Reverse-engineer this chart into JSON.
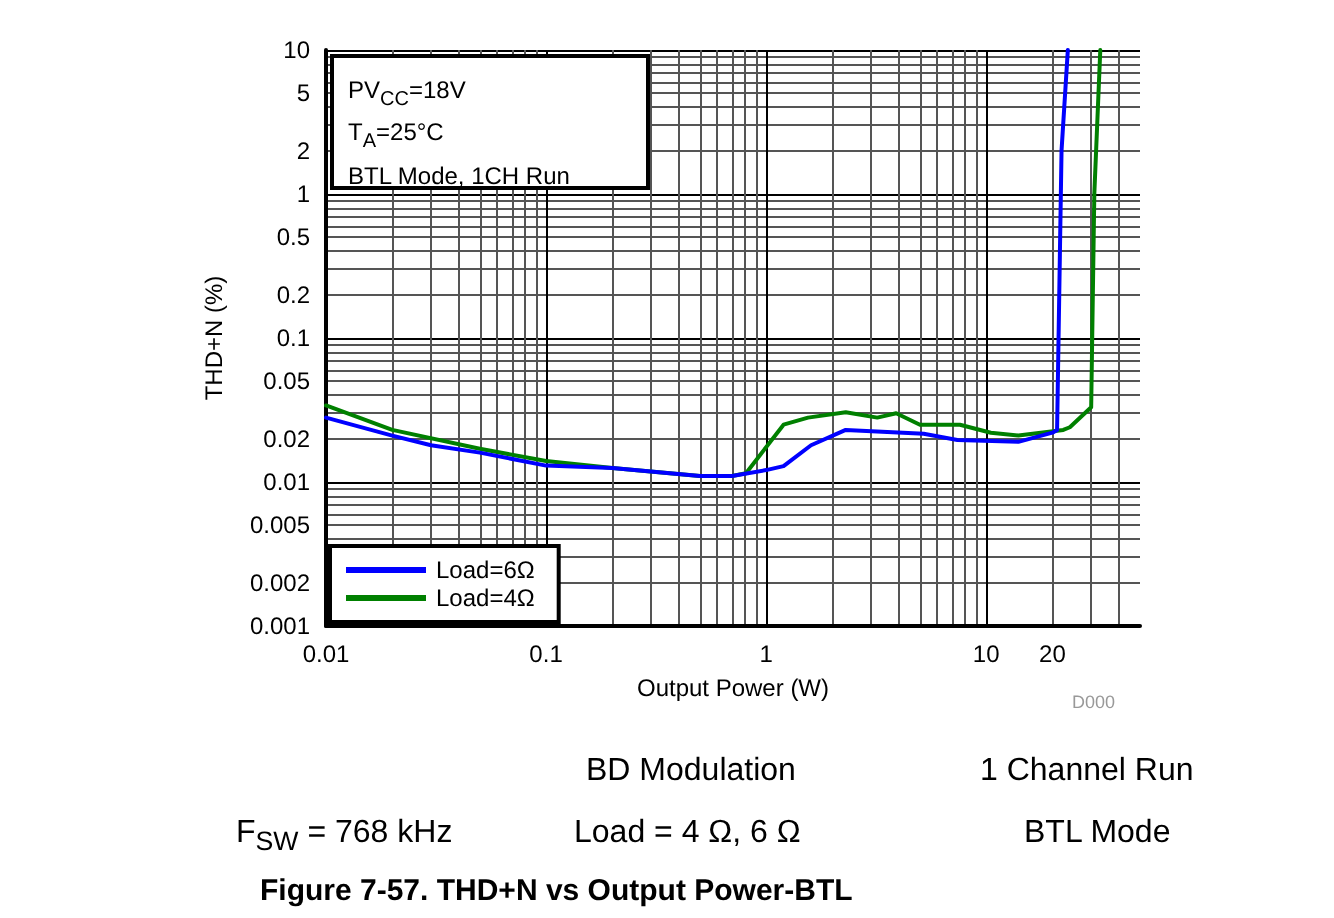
{
  "chart_data": {
    "type": "line",
    "title": "Figure 7-57. THD+N vs Output Power-BTL",
    "xlabel": "Output Power (W)",
    "ylabel": "THD+N (%)",
    "log": "xy",
    "grid": true,
    "legend": "bottom left",
    "marker": "none",
    "line_style": "solid",
    "xlim": [
      0.01,
      50
    ],
    "xticks": [
      0.01,
      0.1,
      1,
      10,
      20
    ],
    "ylim": [
      0.001,
      10
    ],
    "yticks": [
      0.001,
      0.002,
      0.005,
      0.01,
      0.02,
      0.05,
      0.1,
      0.2,
      0.5,
      1,
      2,
      5,
      10
    ],
    "annotations": [
      "PV$_{CC}$=18V",
      "T$_{A}$=25°C",
      "BTL Mode, 1CH Run",
      "D000",
      "BD Modulation",
      "1 Channel Run",
      "F$_{SW}$ = 768 kHz",
      "Load = 4 Ω, 6 Ω",
      "BTL Mode"
    ],
    "series": [
      {
        "name": "Load=6Ω",
        "color": "#0000ff",
        "x": [
          0.01,
          0.02,
          0.03,
          0.05,
          0.1,
          0.2,
          0.5,
          0.7,
          1,
          1.2,
          1.6,
          2.3,
          5.2,
          7.4,
          14,
          20,
          21,
          22,
          23.5
        ],
        "values": [
          0.028,
          0.021,
          0.018,
          0.016,
          0.013,
          0.0125,
          0.011,
          0.011,
          0.0121,
          0.0129,
          0.018,
          0.023,
          0.0216,
          0.0196,
          0.019,
          0.022,
          0.023,
          2,
          10
        ]
      },
      {
        "name": "Load=4Ω",
        "color": "#008000",
        "x": [
          0.01,
          0.02,
          0.05,
          0.1,
          0.2,
          0.5,
          0.7,
          0.81,
          1.2,
          1.55,
          2.3,
          3.2,
          3.9,
          5,
          7.6,
          10.5,
          14,
          22.4,
          24,
          30,
          31,
          33
        ],
        "values": [
          0.034,
          0.023,
          0.017,
          0.014,
          0.0125,
          0.011,
          0.011,
          0.0115,
          0.025,
          0.028,
          0.0305,
          0.028,
          0.03,
          0.025,
          0.025,
          0.022,
          0.021,
          0.023,
          0.024,
          0.033,
          1,
          10
        ]
      }
    ]
  }
}
